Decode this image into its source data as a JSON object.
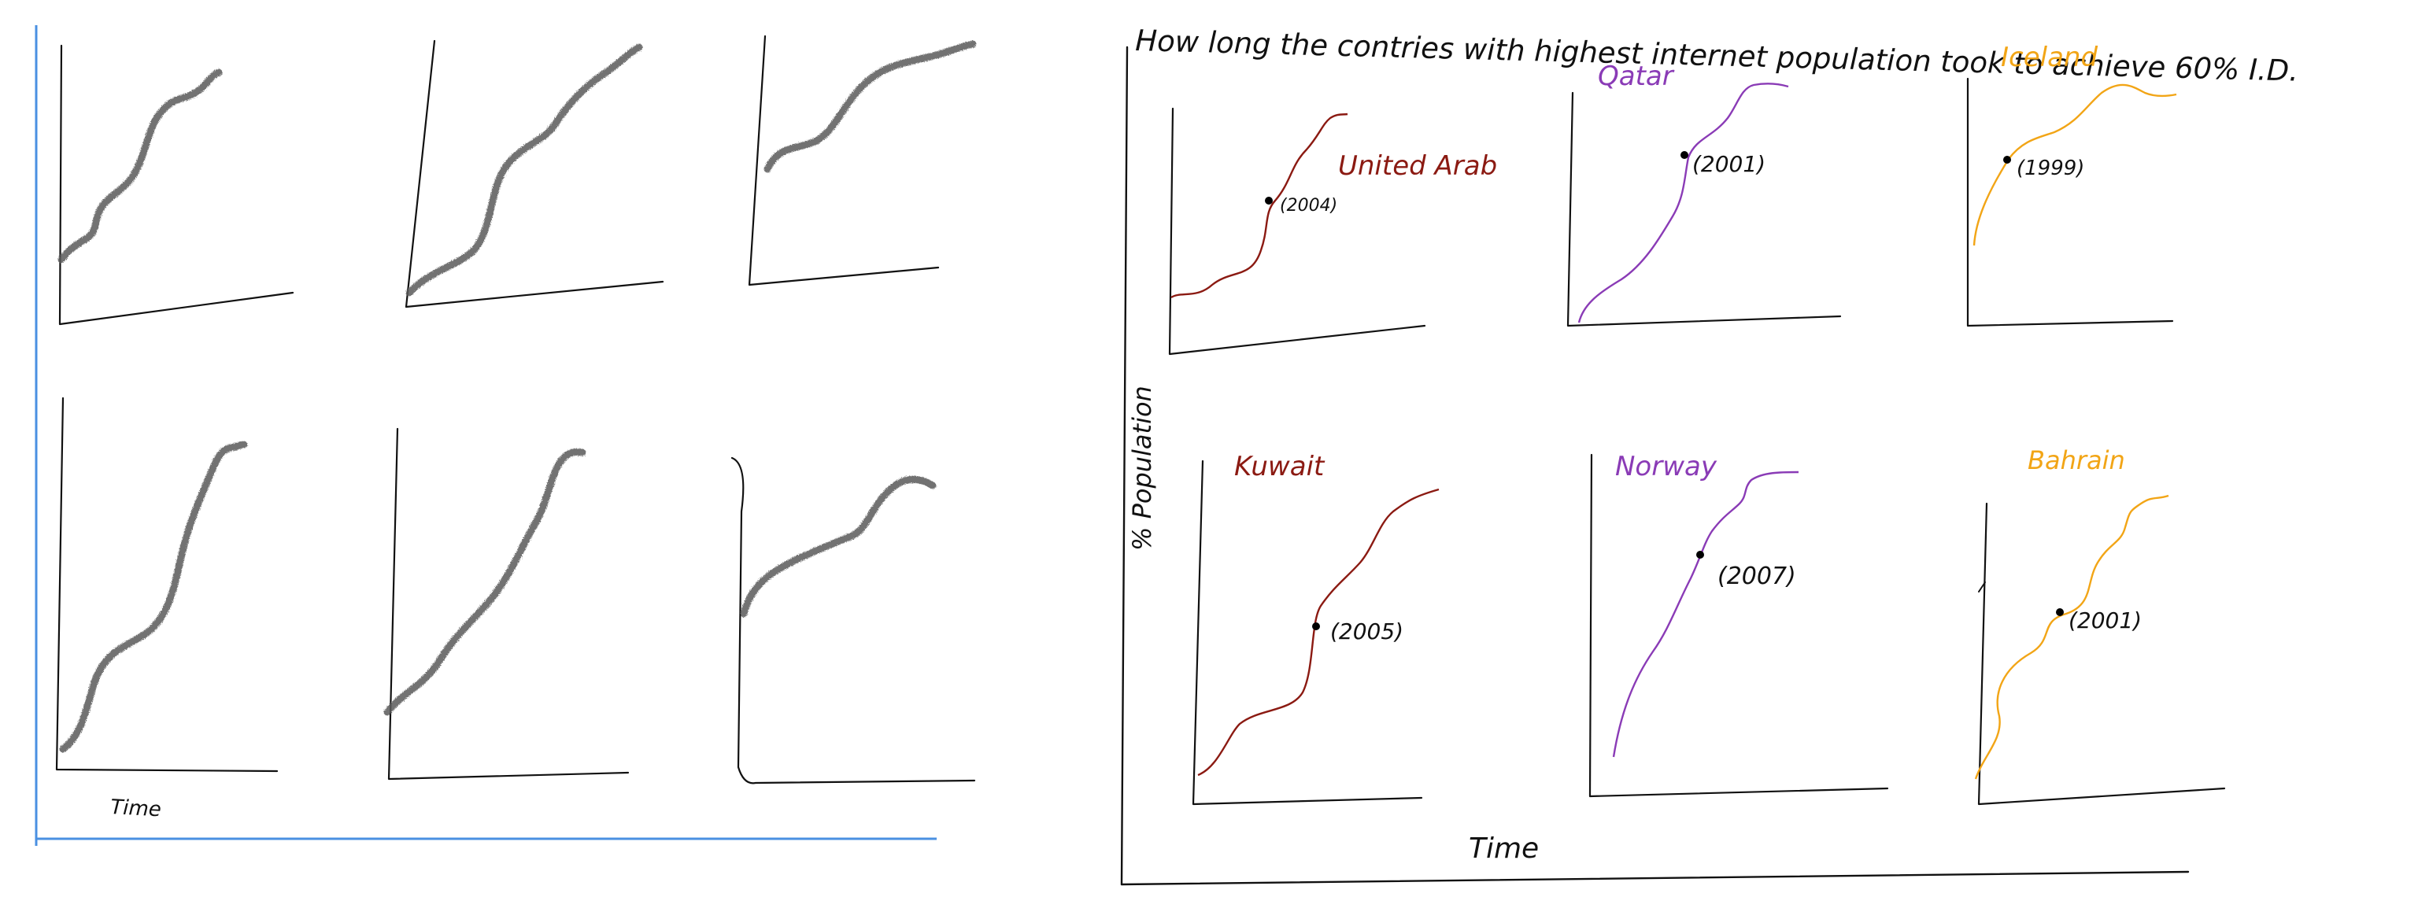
{
  "title": "How long the contries with highest internet population took to achieve 60% I.D.",
  "left_panel": {
    "time_label": "Time"
  },
  "right_panel": {
    "y_label": "% Population",
    "x_label": "Time",
    "charts": [
      {
        "country": "United Arab",
        "year": "(2004)",
        "color": "#8b1a12"
      },
      {
        "country": "Qatar",
        "year": "(2001)",
        "color": "#8a3bb6"
      },
      {
        "country": "Iceland",
        "year": "(1999)",
        "color": "#f2a516"
      },
      {
        "country": "Kuwait",
        "year": "(2005)",
        "color": "#8b1a12"
      },
      {
        "country": "Norway",
        "year": "(2007)",
        "color": "#8a3bb6"
      },
      {
        "country": "Bahrain",
        "year": "(2001)",
        "color": "#f2a516"
      }
    ]
  },
  "colors": {
    "ink": "#111111",
    "pencil": "#5a5a5a",
    "frame_blue": "#4a90e2",
    "dot": "#000000"
  }
}
